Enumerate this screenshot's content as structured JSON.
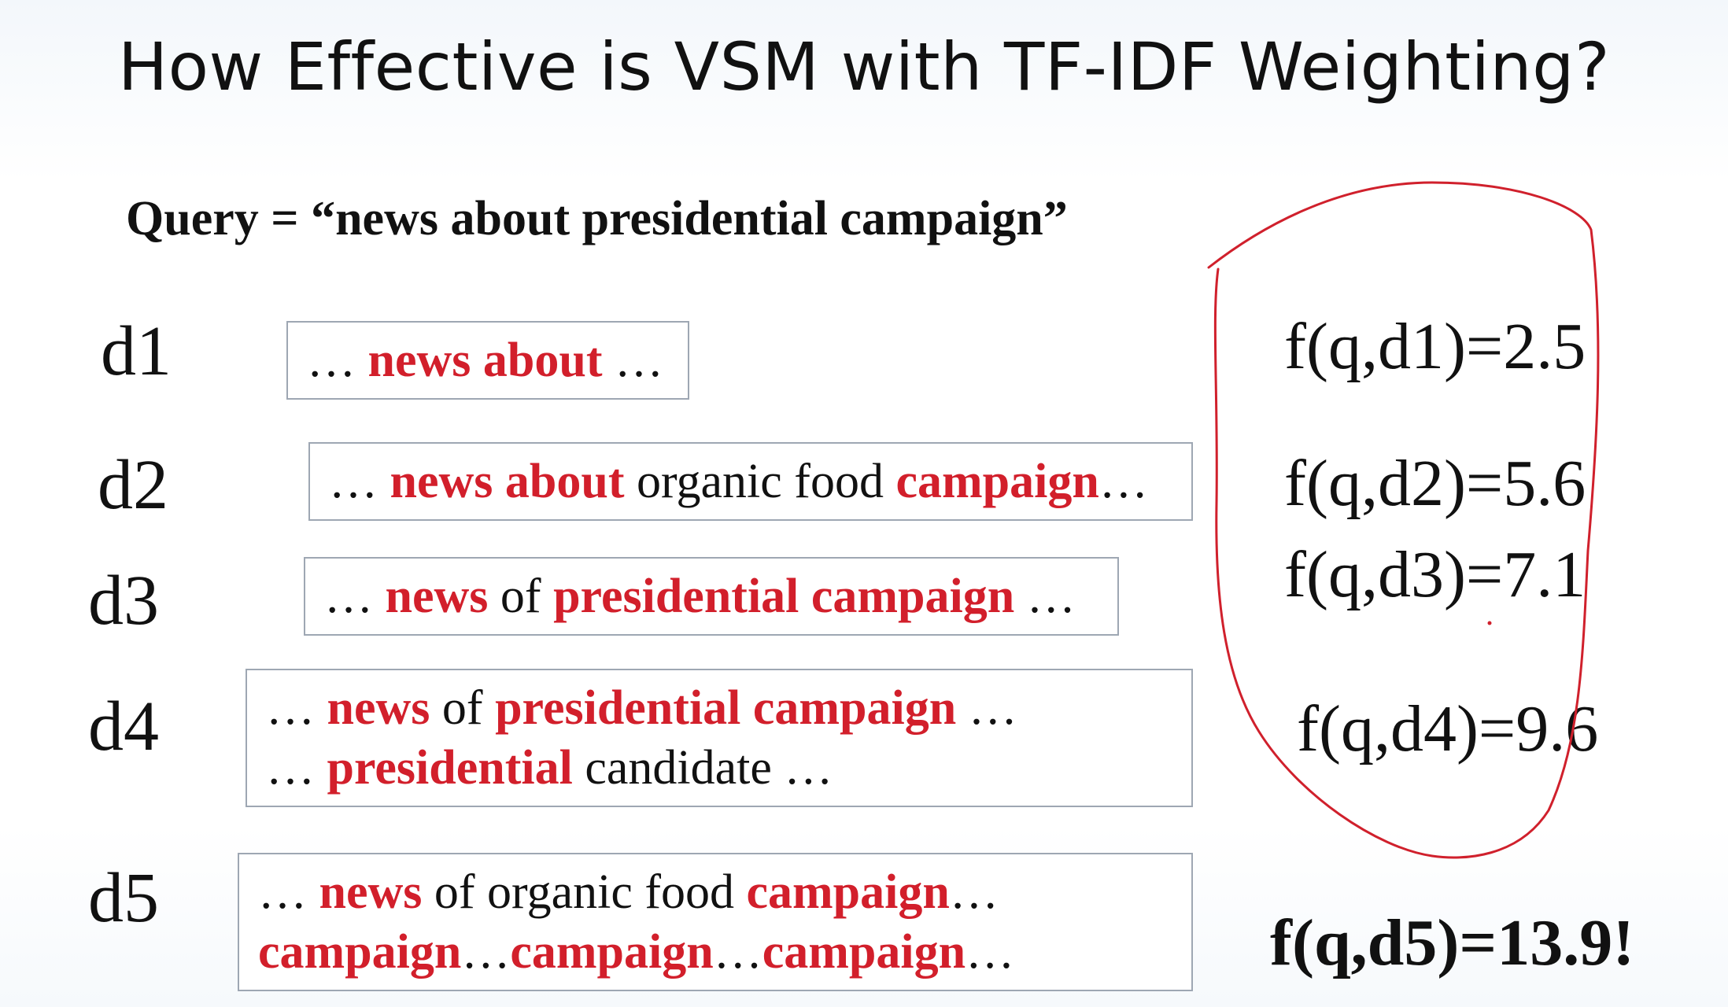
{
  "title": "How Effective is VSM with TF-IDF Weighting?",
  "query": "Query = “news about presidential campaign”",
  "docs": [
    {
      "label": "d1",
      "lines": [
        [
          {
            "t": "… ",
            "h": false
          },
          {
            "t": "news about",
            "h": true
          },
          {
            "t": " …",
            "h": false
          }
        ]
      ],
      "score": "f(q,d1)=2.5"
    },
    {
      "label": "d2",
      "lines": [
        [
          {
            "t": "… ",
            "h": false
          },
          {
            "t": "news about",
            "h": true
          },
          {
            "t": " organic food ",
            "h": false
          },
          {
            "t": "campaign",
            "h": true
          },
          {
            "t": "…",
            "h": false
          }
        ]
      ],
      "score": "f(q,d2)=5.6"
    },
    {
      "label": "d3",
      "lines": [
        [
          {
            "t": "… ",
            "h": false
          },
          {
            "t": "news",
            "h": true
          },
          {
            "t": " of ",
            "h": false
          },
          {
            "t": "presidential campaign",
            "h": true
          },
          {
            "t": " …",
            "h": false
          }
        ]
      ],
      "score": "f(q,d3)=7.1"
    },
    {
      "label": "d4",
      "lines": [
        [
          {
            "t": "… ",
            "h": false
          },
          {
            "t": "news",
            "h": true
          },
          {
            "t": " of ",
            "h": false
          },
          {
            "t": "presidential campaign",
            "h": true
          },
          {
            "t": " …",
            "h": false
          }
        ],
        [
          {
            "t": "… ",
            "h": false
          },
          {
            "t": "presidential",
            "h": true
          },
          {
            "t": " candidate …",
            "h": false
          }
        ]
      ],
      "score": "f(q,d4)=9.6"
    },
    {
      "label": "d5",
      "lines": [
        [
          {
            "t": "… ",
            "h": false
          },
          {
            "t": "news",
            "h": true
          },
          {
            "t": " of organic food ",
            "h": false
          },
          {
            "t": "campaign",
            "h": true
          },
          {
            "t": "…",
            "h": false
          }
        ],
        [
          {
            "t": "campaign",
            "h": true
          },
          {
            "t": "…",
            "h": false
          },
          {
            "t": "campaign",
            "h": true
          },
          {
            "t": "…",
            "h": false
          },
          {
            "t": "campaign",
            "h": true
          },
          {
            "t": "…",
            "h": false
          }
        ]
      ],
      "score": "f(q,d5)=13.9!"
    }
  ],
  "colors": {
    "highlight": "#d21f2b",
    "annotation": "#d0202c",
    "box_border": "#9ea7b3"
  }
}
